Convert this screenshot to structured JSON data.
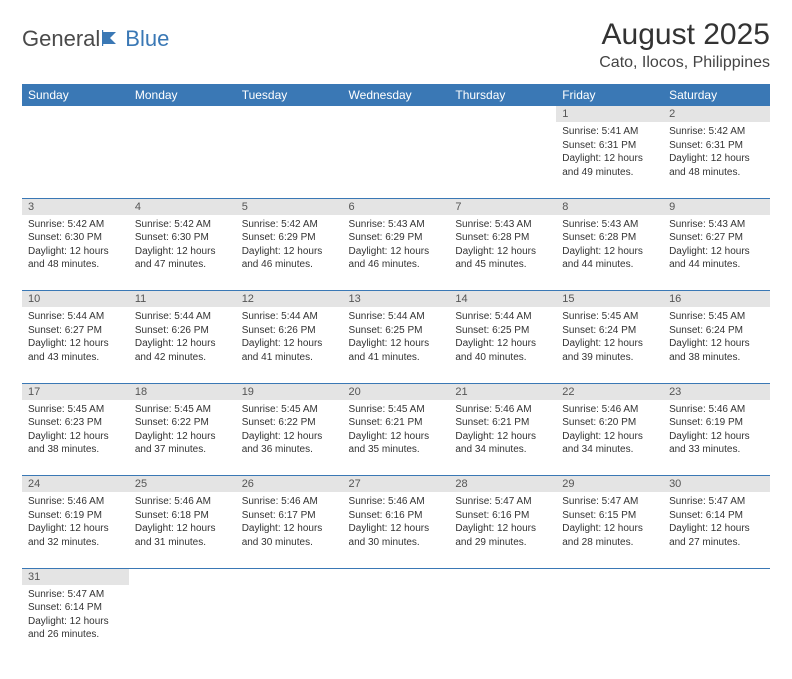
{
  "brand": {
    "part1": "General",
    "part2": "Blue",
    "accent_color": "#3a78b5",
    "text_color": "#4a4a4a"
  },
  "title": "August 2025",
  "location": "Cato, Ilocos, Philippines",
  "theme": {
    "header_bg": "#3a78b5",
    "header_fg": "#ffffff",
    "daynum_bg": "#e4e4e4",
    "rule_color": "#3a78b5"
  },
  "day_headers": [
    "Sunday",
    "Monday",
    "Tuesday",
    "Wednesday",
    "Thursday",
    "Friday",
    "Saturday"
  ],
  "weeks": [
    [
      null,
      null,
      null,
      null,
      null,
      {
        "n": "1",
        "sunrise": "Sunrise: 5:41 AM",
        "sunset": "Sunset: 6:31 PM",
        "daylight": "Daylight: 12 hours and 49 minutes."
      },
      {
        "n": "2",
        "sunrise": "Sunrise: 5:42 AM",
        "sunset": "Sunset: 6:31 PM",
        "daylight": "Daylight: 12 hours and 48 minutes."
      }
    ],
    [
      {
        "n": "3",
        "sunrise": "Sunrise: 5:42 AM",
        "sunset": "Sunset: 6:30 PM",
        "daylight": "Daylight: 12 hours and 48 minutes."
      },
      {
        "n": "4",
        "sunrise": "Sunrise: 5:42 AM",
        "sunset": "Sunset: 6:30 PM",
        "daylight": "Daylight: 12 hours and 47 minutes."
      },
      {
        "n": "5",
        "sunrise": "Sunrise: 5:42 AM",
        "sunset": "Sunset: 6:29 PM",
        "daylight": "Daylight: 12 hours and 46 minutes."
      },
      {
        "n": "6",
        "sunrise": "Sunrise: 5:43 AM",
        "sunset": "Sunset: 6:29 PM",
        "daylight": "Daylight: 12 hours and 46 minutes."
      },
      {
        "n": "7",
        "sunrise": "Sunrise: 5:43 AM",
        "sunset": "Sunset: 6:28 PM",
        "daylight": "Daylight: 12 hours and 45 minutes."
      },
      {
        "n": "8",
        "sunrise": "Sunrise: 5:43 AM",
        "sunset": "Sunset: 6:28 PM",
        "daylight": "Daylight: 12 hours and 44 minutes."
      },
      {
        "n": "9",
        "sunrise": "Sunrise: 5:43 AM",
        "sunset": "Sunset: 6:27 PM",
        "daylight": "Daylight: 12 hours and 44 minutes."
      }
    ],
    [
      {
        "n": "10",
        "sunrise": "Sunrise: 5:44 AM",
        "sunset": "Sunset: 6:27 PM",
        "daylight": "Daylight: 12 hours and 43 minutes."
      },
      {
        "n": "11",
        "sunrise": "Sunrise: 5:44 AM",
        "sunset": "Sunset: 6:26 PM",
        "daylight": "Daylight: 12 hours and 42 minutes."
      },
      {
        "n": "12",
        "sunrise": "Sunrise: 5:44 AM",
        "sunset": "Sunset: 6:26 PM",
        "daylight": "Daylight: 12 hours and 41 minutes."
      },
      {
        "n": "13",
        "sunrise": "Sunrise: 5:44 AM",
        "sunset": "Sunset: 6:25 PM",
        "daylight": "Daylight: 12 hours and 41 minutes."
      },
      {
        "n": "14",
        "sunrise": "Sunrise: 5:44 AM",
        "sunset": "Sunset: 6:25 PM",
        "daylight": "Daylight: 12 hours and 40 minutes."
      },
      {
        "n": "15",
        "sunrise": "Sunrise: 5:45 AM",
        "sunset": "Sunset: 6:24 PM",
        "daylight": "Daylight: 12 hours and 39 minutes."
      },
      {
        "n": "16",
        "sunrise": "Sunrise: 5:45 AM",
        "sunset": "Sunset: 6:24 PM",
        "daylight": "Daylight: 12 hours and 38 minutes."
      }
    ],
    [
      {
        "n": "17",
        "sunrise": "Sunrise: 5:45 AM",
        "sunset": "Sunset: 6:23 PM",
        "daylight": "Daylight: 12 hours and 38 minutes."
      },
      {
        "n": "18",
        "sunrise": "Sunrise: 5:45 AM",
        "sunset": "Sunset: 6:22 PM",
        "daylight": "Daylight: 12 hours and 37 minutes."
      },
      {
        "n": "19",
        "sunrise": "Sunrise: 5:45 AM",
        "sunset": "Sunset: 6:22 PM",
        "daylight": "Daylight: 12 hours and 36 minutes."
      },
      {
        "n": "20",
        "sunrise": "Sunrise: 5:45 AM",
        "sunset": "Sunset: 6:21 PM",
        "daylight": "Daylight: 12 hours and 35 minutes."
      },
      {
        "n": "21",
        "sunrise": "Sunrise: 5:46 AM",
        "sunset": "Sunset: 6:21 PM",
        "daylight": "Daylight: 12 hours and 34 minutes."
      },
      {
        "n": "22",
        "sunrise": "Sunrise: 5:46 AM",
        "sunset": "Sunset: 6:20 PM",
        "daylight": "Daylight: 12 hours and 34 minutes."
      },
      {
        "n": "23",
        "sunrise": "Sunrise: 5:46 AM",
        "sunset": "Sunset: 6:19 PM",
        "daylight": "Daylight: 12 hours and 33 minutes."
      }
    ],
    [
      {
        "n": "24",
        "sunrise": "Sunrise: 5:46 AM",
        "sunset": "Sunset: 6:19 PM",
        "daylight": "Daylight: 12 hours and 32 minutes."
      },
      {
        "n": "25",
        "sunrise": "Sunrise: 5:46 AM",
        "sunset": "Sunset: 6:18 PM",
        "daylight": "Daylight: 12 hours and 31 minutes."
      },
      {
        "n": "26",
        "sunrise": "Sunrise: 5:46 AM",
        "sunset": "Sunset: 6:17 PM",
        "daylight": "Daylight: 12 hours and 30 minutes."
      },
      {
        "n": "27",
        "sunrise": "Sunrise: 5:46 AM",
        "sunset": "Sunset: 6:16 PM",
        "daylight": "Daylight: 12 hours and 30 minutes."
      },
      {
        "n": "28",
        "sunrise": "Sunrise: 5:47 AM",
        "sunset": "Sunset: 6:16 PM",
        "daylight": "Daylight: 12 hours and 29 minutes."
      },
      {
        "n": "29",
        "sunrise": "Sunrise: 5:47 AM",
        "sunset": "Sunset: 6:15 PM",
        "daylight": "Daylight: 12 hours and 28 minutes."
      },
      {
        "n": "30",
        "sunrise": "Sunrise: 5:47 AM",
        "sunset": "Sunset: 6:14 PM",
        "daylight": "Daylight: 12 hours and 27 minutes."
      }
    ],
    [
      {
        "n": "31",
        "sunrise": "Sunrise: 5:47 AM",
        "sunset": "Sunset: 6:14 PM",
        "daylight": "Daylight: 12 hours and 26 minutes."
      },
      null,
      null,
      null,
      null,
      null,
      null
    ]
  ]
}
